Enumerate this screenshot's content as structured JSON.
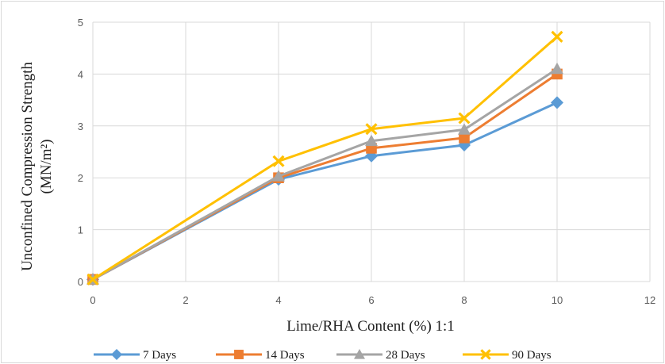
{
  "chart_data": {
    "type": "line",
    "xlabel": "Lime/RHA Content (%) 1:1",
    "ylabel_line1": "Unconfined Compression Strength",
    "ylabel_line2": "(MN/m²)",
    "xlim": [
      0,
      12
    ],
    "ylim": [
      0,
      5
    ],
    "xticks": [
      0,
      2,
      4,
      6,
      8,
      10,
      12
    ],
    "yticks": [
      0,
      1,
      2,
      3,
      4,
      5
    ],
    "grid": true,
    "legend_position": "bottom",
    "x": [
      0,
      4,
      6,
      8,
      10
    ],
    "series": [
      {
        "name": "7 Days",
        "color": "#5B9BD5",
        "marker": "diamond",
        "values": [
          0.04,
          1.97,
          2.42,
          2.63,
          3.45
        ]
      },
      {
        "name": "14 Days",
        "color": "#ED7D31",
        "marker": "square",
        "values": [
          0.04,
          2.0,
          2.57,
          2.77,
          4.0
        ]
      },
      {
        "name": "28 Days",
        "color": "#A5A5A5",
        "marker": "triangle",
        "values": [
          0.04,
          2.03,
          2.71,
          2.93,
          4.1
        ]
      },
      {
        "name": "90 Days",
        "color": "#FFC000",
        "marker": "x",
        "values": [
          0.04,
          2.32,
          2.94,
          3.15,
          4.72
        ]
      }
    ]
  }
}
